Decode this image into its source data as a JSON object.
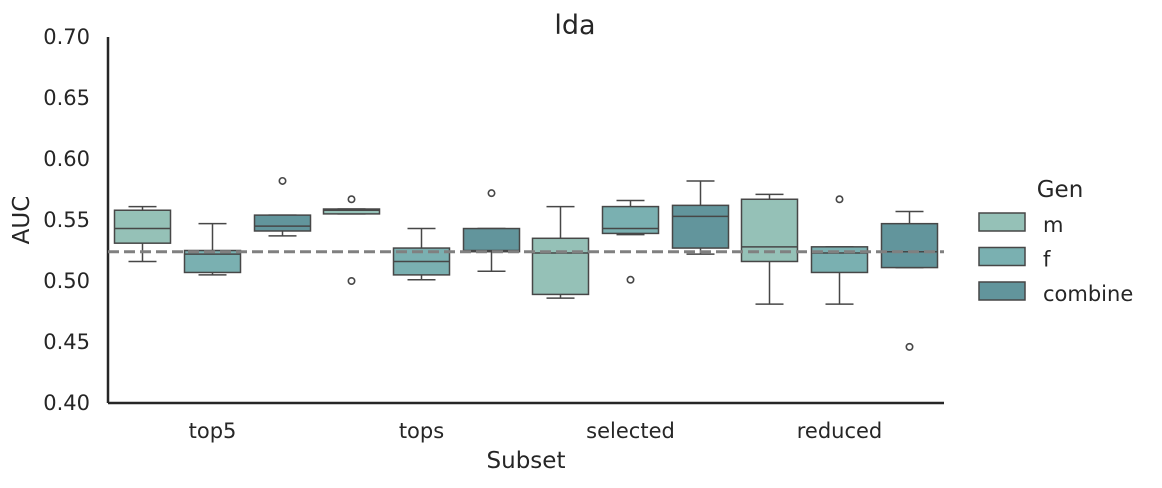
{
  "chart_data": {
    "type": "box",
    "title": "lda",
    "xlabel": "Subset",
    "ylabel": "AUC",
    "ylim": [
      0.4,
      0.7
    ],
    "yticks": [
      "0.40",
      "0.45",
      "0.50",
      "0.55",
      "0.60",
      "0.65",
      "0.70"
    ],
    "categories": [
      "top5",
      "tops",
      "selected",
      "reduced"
    ],
    "grid": false,
    "legend": {
      "title": "Gen",
      "position": "right"
    },
    "reference_line": {
      "y": 0.524,
      "style": "dashed",
      "color": "#808080"
    },
    "series": [
      {
        "name": "m",
        "color": "#95c1b7",
        "boxes": [
          {
            "whislo": 0.516,
            "q1": 0.531,
            "med": 0.543,
            "q3": 0.558,
            "whishi": 0.561,
            "fliers": []
          },
          {
            "whislo": 0.555,
            "q1": 0.555,
            "med": 0.558,
            "q3": 0.559,
            "whishi": 0.559,
            "fliers": [
              0.567,
              0.5
            ]
          },
          {
            "whislo": 0.486,
            "q1": 0.489,
            "med": 0.523,
            "q3": 0.535,
            "whishi": 0.561,
            "fliers": []
          },
          {
            "whislo": 0.481,
            "q1": 0.516,
            "med": 0.528,
            "q3": 0.567,
            "whishi": 0.571,
            "fliers": []
          }
        ]
      },
      {
        "name": "f",
        "color": "#7ab0b1",
        "boxes": [
          {
            "whislo": 0.505,
            "q1": 0.507,
            "med": 0.522,
            "q3": 0.525,
            "whishi": 0.547,
            "fliers": []
          },
          {
            "whislo": 0.501,
            "q1": 0.505,
            "med": 0.516,
            "q3": 0.527,
            "whishi": 0.543,
            "fliers": []
          },
          {
            "whislo": 0.538,
            "q1": 0.539,
            "med": 0.543,
            "q3": 0.561,
            "whishi": 0.566,
            "fliers": [
              0.501
            ]
          },
          {
            "whislo": 0.481,
            "q1": 0.507,
            "med": 0.523,
            "q3": 0.528,
            "whishi": 0.528,
            "fliers": [
              0.567
            ]
          }
        ]
      },
      {
        "name": "combine",
        "color": "#62959c",
        "boxes": [
          {
            "whislo": 0.537,
            "q1": 0.541,
            "med": 0.545,
            "q3": 0.554,
            "whishi": 0.554,
            "fliers": [
              0.582
            ]
          },
          {
            "whislo": 0.508,
            "q1": 0.524,
            "med": 0.525,
            "q3": 0.543,
            "whishi": 0.543,
            "fliers": [
              0.572
            ]
          },
          {
            "whislo": 0.522,
            "q1": 0.527,
            "med": 0.553,
            "q3": 0.562,
            "whishi": 0.582,
            "fliers": []
          },
          {
            "whislo": 0.511,
            "q1": 0.511,
            "med": 0.524,
            "q3": 0.547,
            "whishi": 0.557,
            "fliers": [
              0.446
            ]
          }
        ]
      }
    ]
  }
}
